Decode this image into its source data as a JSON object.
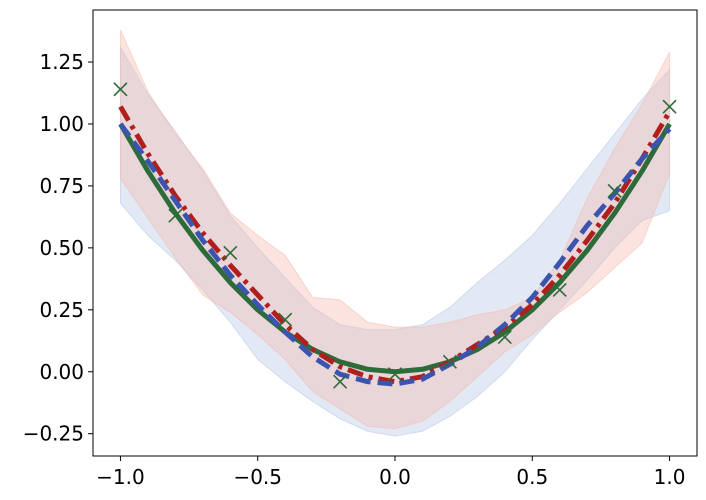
{
  "chart_data": {
    "type": "line",
    "title": "",
    "xlabel": "",
    "ylabel": "",
    "xlim": [
      -1.1,
      1.1
    ],
    "ylim": [
      -0.34,
      1.46
    ],
    "grid": false,
    "x_ticks": [
      -1.0,
      -0.5,
      0.0,
      0.5,
      1.0
    ],
    "x_tick_labels": [
      "−1.0",
      "−0.5",
      "0.0",
      "0.5",
      "1.0"
    ],
    "y_ticks": [
      -0.25,
      0.0,
      0.25,
      0.5,
      0.75,
      1.0,
      1.25
    ],
    "y_tick_labels": [
      "−0.25",
      "0.00",
      "0.25",
      "0.50",
      "0.75",
      "1.00",
      "1.25"
    ],
    "x": [
      -1.0,
      -0.9,
      -0.8,
      -0.7,
      -0.6,
      -0.5,
      -0.4,
      -0.3,
      -0.2,
      -0.1,
      0.0,
      0.1,
      0.2,
      0.3,
      0.4,
      0.5,
      0.6,
      0.7,
      0.8,
      0.9,
      1.0
    ],
    "series": [
      {
        "kind": "line",
        "style": "solid",
        "color": "#2e6b3a",
        "values": [
          1.0,
          0.81,
          0.64,
          0.49,
          0.36,
          0.25,
          0.16,
          0.09,
          0.04,
          0.01,
          0.0,
          0.01,
          0.04,
          0.09,
          0.16,
          0.25,
          0.36,
          0.49,
          0.64,
          0.81,
          1.0
        ]
      },
      {
        "kind": "line",
        "style": "dashdot",
        "color": "#b01e1e",
        "band_color": "#f4b8ac",
        "values": [
          1.07,
          0.88,
          0.71,
          0.56,
          0.43,
          0.31,
          0.19,
          0.09,
          0.02,
          -0.02,
          -0.04,
          -0.02,
          0.04,
          0.11,
          0.18,
          0.27,
          0.39,
          0.53,
          0.68,
          0.86,
          1.05
        ],
        "band_upper": [
          1.38,
          1.13,
          0.96,
          0.82,
          0.64,
          0.55,
          0.47,
          0.3,
          0.29,
          0.2,
          0.18,
          0.18,
          0.2,
          0.23,
          0.25,
          0.3,
          0.45,
          0.7,
          0.9,
          1.08,
          1.29
        ],
        "band_lower": [
          0.78,
          0.62,
          0.46,
          0.31,
          0.24,
          0.15,
          0.05,
          -0.08,
          -0.15,
          -0.22,
          -0.23,
          -0.2,
          -0.12,
          -0.02,
          0.08,
          0.15,
          0.24,
          0.32,
          0.42,
          0.52,
          0.8
        ]
      },
      {
        "kind": "line",
        "style": "dashed",
        "color": "#3a54b0",
        "band_color": "#b4c4e4",
        "values": [
          1.0,
          0.85,
          0.69,
          0.53,
          0.39,
          0.27,
          0.16,
          0.06,
          -0.01,
          -0.04,
          -0.05,
          -0.03,
          0.03,
          0.1,
          0.19,
          0.3,
          0.44,
          0.59,
          0.72,
          0.86,
          0.98
        ],
        "band_upper": [
          1.31,
          1.12,
          0.97,
          0.81,
          0.63,
          0.5,
          0.38,
          0.26,
          0.19,
          0.17,
          0.17,
          0.19,
          0.26,
          0.36,
          0.45,
          0.55,
          0.68,
          0.82,
          0.96,
          1.1,
          1.22
        ],
        "band_lower": [
          0.68,
          0.55,
          0.45,
          0.33,
          0.2,
          0.05,
          -0.04,
          -0.12,
          -0.19,
          -0.24,
          -0.26,
          -0.24,
          -0.18,
          -0.1,
          0.0,
          0.13,
          0.25,
          0.37,
          0.5,
          0.61,
          0.65
        ]
      },
      {
        "kind": "markers",
        "marker": "x",
        "color": "#2e6b3a",
        "x": [
          -1.0,
          -0.8,
          -0.6,
          -0.4,
          -0.2,
          0.0,
          0.2,
          0.4,
          0.6,
          0.8,
          1.0
        ],
        "values": [
          1.14,
          0.63,
          0.48,
          0.21,
          -0.04,
          -0.01,
          0.04,
          0.14,
          0.33,
          0.73,
          1.07
        ]
      }
    ]
  }
}
